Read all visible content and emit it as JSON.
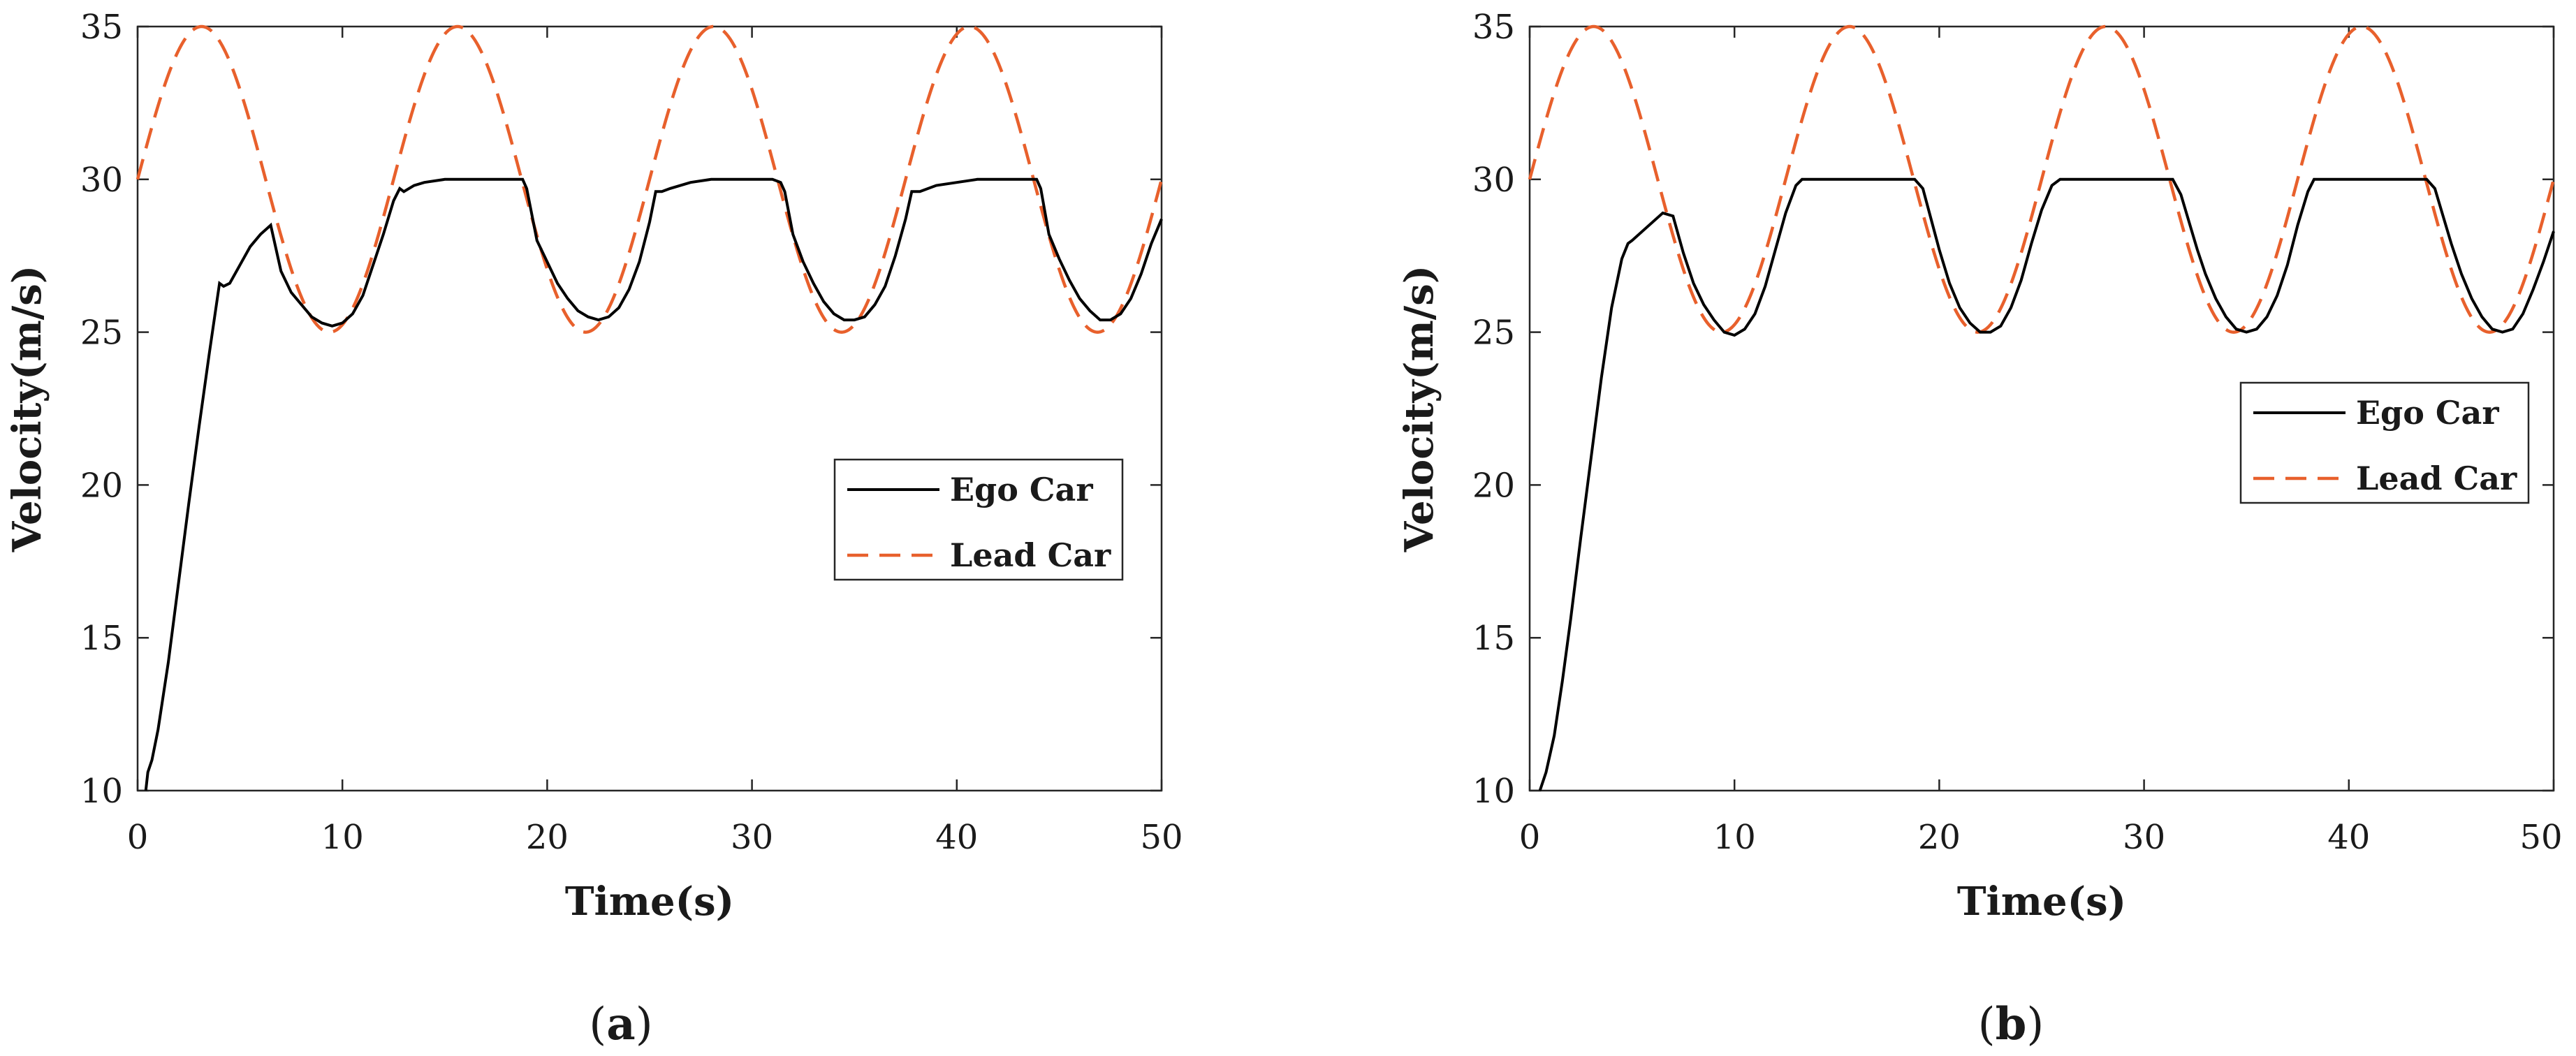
{
  "colors": {
    "ego": "#000000",
    "lead": "#e8602c",
    "axis": "#262626"
  },
  "chart_data": [
    {
      "type": "line",
      "panel": "a",
      "panel_label": "a",
      "xlabel": "Time(s)",
      "ylabel": "Velocity(m/s)",
      "xlim": [
        0,
        50
      ],
      "ylim": [
        10,
        35
      ],
      "xticks": [
        0,
        10,
        20,
        30,
        40,
        50
      ],
      "xtick_labels": [
        "0",
        "10",
        "20",
        "30",
        "40",
        "50"
      ],
      "yticks": [
        10,
        15,
        20,
        25,
        30,
        35
      ],
      "ytick_labels": [
        "10",
        "15",
        "20",
        "25",
        "30",
        "35"
      ],
      "grid": false,
      "legend_position": "center-right",
      "series": [
        {
          "name": "Ego Car",
          "style": "solid",
          "x": [
            0.4,
            0.5,
            0.7,
            1.0,
            1.5,
            2.0,
            2.5,
            3.0,
            3.5,
            4.0,
            4.2,
            4.5,
            5.0,
            5.5,
            6.0,
            6.5,
            7.0,
            7.5,
            8.0,
            8.5,
            9.0,
            9.5,
            10.0,
            10.5,
            11.0,
            11.5,
            12.0,
            12.5,
            12.8,
            13.0,
            13.5,
            14.0,
            15.0,
            16.0,
            17.0,
            18.0,
            18.8,
            19.0,
            19.5,
            20.0,
            20.5,
            21.0,
            21.5,
            22.0,
            22.5,
            23.0,
            23.5,
            24.0,
            24.5,
            25.0,
            25.3,
            25.6,
            26.0,
            27.0,
            28.0,
            29.0,
            30.0,
            31.0,
            31.4,
            31.6,
            32.0,
            32.5,
            33.0,
            33.5,
            34.0,
            34.5,
            35.0,
            35.5,
            36.0,
            36.5,
            37.0,
            37.5,
            37.8,
            38.2,
            39.0,
            40.0,
            41.0,
            42.0,
            43.0,
            43.9,
            44.1,
            44.5,
            45.0,
            45.5,
            46.0,
            46.5,
            47.0,
            47.5,
            48.0,
            48.5,
            49.0,
            49.5,
            50.0
          ],
          "y": [
            10.0,
            10.6,
            11.0,
            12.0,
            14.2,
            16.8,
            19.4,
            21.9,
            24.3,
            26.6,
            26.5,
            26.6,
            27.2,
            27.8,
            28.2,
            28.5,
            27.0,
            26.3,
            25.9,
            25.5,
            25.3,
            25.2,
            25.3,
            25.6,
            26.2,
            27.2,
            28.2,
            29.3,
            29.7,
            29.6,
            29.8,
            29.9,
            30.0,
            30.0,
            30.0,
            30.0,
            30.0,
            29.7,
            28.0,
            27.3,
            26.6,
            26.1,
            25.7,
            25.5,
            25.4,
            25.5,
            25.8,
            26.4,
            27.3,
            28.6,
            29.6,
            29.6,
            29.7,
            29.9,
            30.0,
            30.0,
            30.0,
            30.0,
            29.9,
            29.6,
            28.2,
            27.3,
            26.6,
            26.0,
            25.6,
            25.4,
            25.4,
            25.5,
            25.9,
            26.5,
            27.5,
            28.7,
            29.6,
            29.6,
            29.8,
            29.9,
            30.0,
            30.0,
            30.0,
            30.0,
            29.7,
            28.2,
            27.4,
            26.7,
            26.1,
            25.7,
            25.4,
            25.4,
            25.6,
            26.1,
            26.9,
            27.9,
            28.7
          ]
        },
        {
          "name": "Lead Car",
          "style": "dashed",
          "function": "30 + 5*sin(2*pi*t/12.5)",
          "x": [
            0,
            1,
            2,
            3,
            3.125,
            4,
            5,
            6,
            7,
            8,
            9,
            9.375,
            10,
            11,
            12,
            12.5,
            13,
            14,
            15,
            15.625,
            16,
            17,
            18,
            19,
            20,
            21,
            21.875,
            22,
            23,
            24,
            25,
            26,
            27,
            28,
            28.125,
            29,
            30,
            31,
            32,
            33,
            34,
            34.375,
            35,
            36,
            37,
            37.5,
            38,
            39,
            40,
            40.625,
            41,
            42,
            43,
            44,
            45,
            46,
            46.875,
            47,
            48,
            49,
            50
          ],
          "y": [
            30.0,
            32.43,
            34.26,
            34.98,
            35.0,
            34.55,
            32.94,
            30.63,
            28.12,
            26.05,
            25.06,
            25.0,
            25.24,
            26.59,
            28.75,
            30.0,
            31.25,
            33.41,
            34.76,
            35.0,
            34.94,
            33.95,
            31.88,
            29.37,
            27.06,
            25.45,
            25.0,
            25.02,
            25.74,
            27.57,
            30.0,
            32.43,
            34.26,
            34.98,
            35.0,
            34.55,
            32.94,
            30.63,
            28.12,
            26.05,
            25.06,
            25.0,
            25.24,
            26.59,
            28.75,
            30.0,
            31.25,
            33.41,
            34.76,
            35.0,
            34.94,
            33.95,
            31.88,
            29.37,
            27.06,
            25.45,
            25.0,
            25.02,
            25.74,
            27.57,
            30.0
          ]
        }
      ]
    },
    {
      "type": "line",
      "panel": "b",
      "panel_label": "b",
      "xlabel": "Time(s)",
      "ylabel": "Velocity(m/s)",
      "xlim": [
        0,
        50
      ],
      "ylim": [
        10,
        35
      ],
      "xticks": [
        0,
        10,
        20,
        30,
        40,
        50
      ],
      "xtick_labels": [
        "0",
        "10",
        "20",
        "30",
        "40",
        "50"
      ],
      "yticks": [
        10,
        15,
        20,
        25,
        30,
        35
      ],
      "ytick_labels": [
        "10",
        "15",
        "20",
        "25",
        "30",
        "35"
      ],
      "grid": false,
      "legend_position": "center-right",
      "series": [
        {
          "name": "Ego Car",
          "style": "solid",
          "x": [
            0.5,
            0.8,
            1.2,
            1.6,
            2.0,
            2.5,
            3.0,
            3.5,
            4.0,
            4.5,
            4.8,
            5.0,
            5.5,
            6.0,
            6.5,
            7.0,
            7.5,
            8.0,
            8.5,
            9.0,
            9.5,
            10.0,
            10.5,
            11.0,
            11.5,
            12.0,
            12.5,
            13.0,
            13.3,
            14.0,
            15.0,
            16.0,
            17.0,
            18.0,
            18.8,
            19.2,
            19.6,
            20.0,
            20.5,
            21.0,
            21.5,
            22.0,
            22.5,
            23.0,
            23.5,
            24.0,
            24.5,
            25.0,
            25.5,
            25.9,
            26.5,
            27.0,
            28.0,
            29.0,
            30.0,
            31.0,
            31.4,
            31.8,
            32.2,
            32.6,
            33.0,
            33.5,
            34.0,
            34.5,
            35.0,
            35.5,
            36.0,
            36.5,
            37.0,
            37.5,
            38.0,
            38.3,
            39.0,
            40.0,
            41.0,
            42.0,
            43.0,
            43.8,
            44.2,
            44.6,
            45.0,
            45.5,
            46.0,
            46.5,
            47.0,
            47.5,
            48.0,
            48.5,
            49.0,
            49.5,
            50.0
          ],
          "y": [
            10.0,
            10.6,
            11.8,
            13.6,
            15.6,
            18.3,
            20.9,
            23.5,
            25.8,
            27.4,
            27.9,
            28.0,
            28.3,
            28.6,
            28.9,
            28.8,
            27.6,
            26.6,
            25.9,
            25.4,
            25.0,
            24.9,
            25.1,
            25.6,
            26.5,
            27.7,
            28.9,
            29.8,
            30.0,
            30.0,
            30.0,
            30.0,
            30.0,
            30.0,
            30.0,
            29.7,
            28.7,
            27.7,
            26.6,
            25.8,
            25.3,
            25.0,
            25.0,
            25.2,
            25.8,
            26.7,
            27.9,
            29.0,
            29.8,
            30.0,
            30.0,
            30.0,
            30.0,
            30.0,
            30.0,
            30.0,
            30.0,
            29.5,
            28.6,
            27.7,
            26.9,
            26.1,
            25.5,
            25.1,
            25.0,
            25.1,
            25.5,
            26.2,
            27.2,
            28.5,
            29.6,
            30.0,
            30.0,
            30.0,
            30.0,
            30.0,
            30.0,
            30.0,
            29.7,
            28.8,
            27.9,
            26.9,
            26.1,
            25.5,
            25.1,
            25.0,
            25.1,
            25.6,
            26.4,
            27.3,
            28.3
          ]
        },
        {
          "name": "Lead Car",
          "style": "dashed",
          "function": "30 + 5*sin(2*pi*t/12.5)",
          "x": [
            0,
            1,
            2,
            3,
            3.125,
            4,
            5,
            6,
            7,
            8,
            9,
            9.375,
            10,
            11,
            12,
            12.5,
            13,
            14,
            15,
            15.625,
            16,
            17,
            18,
            19,
            20,
            21,
            21.875,
            22,
            23,
            24,
            25,
            26,
            27,
            28,
            28.125,
            29,
            30,
            31,
            32,
            33,
            34,
            34.375,
            35,
            36,
            37,
            37.5,
            38,
            39,
            40,
            40.625,
            41,
            42,
            43,
            44,
            45,
            46,
            46.875,
            47,
            48,
            49,
            50
          ],
          "y": [
            30.0,
            32.43,
            34.26,
            34.98,
            35.0,
            34.55,
            32.94,
            30.63,
            28.12,
            26.05,
            25.06,
            25.0,
            25.24,
            26.59,
            28.75,
            30.0,
            31.25,
            33.41,
            34.76,
            35.0,
            34.94,
            33.95,
            31.88,
            29.37,
            27.06,
            25.45,
            25.0,
            25.02,
            25.74,
            27.57,
            30.0,
            32.43,
            34.26,
            34.98,
            35.0,
            34.55,
            32.94,
            30.63,
            28.12,
            26.05,
            25.06,
            25.0,
            25.24,
            26.59,
            28.75,
            30.0,
            31.25,
            33.41,
            34.76,
            35.0,
            34.94,
            33.95,
            31.88,
            29.37,
            27.06,
            25.45,
            25.0,
            25.02,
            25.74,
            27.57,
            30.0
          ]
        }
      ]
    }
  ]
}
